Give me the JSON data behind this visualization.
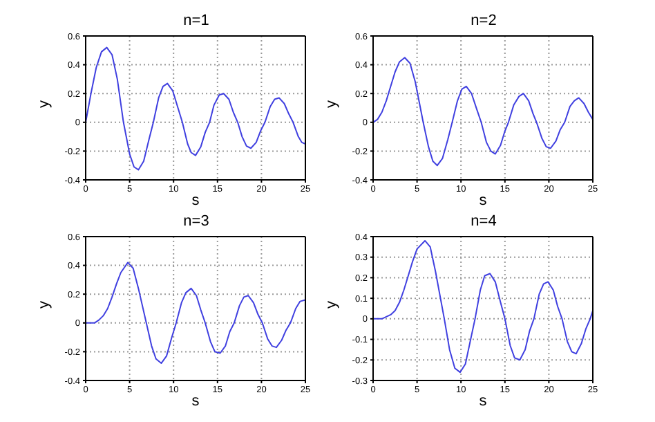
{
  "chart_data": [
    {
      "type": "line",
      "title": "n=1",
      "xlabel": "s",
      "ylabel": "y",
      "xlim": [
        0,
        25
      ],
      "xticks": [
        0,
        5,
        10,
        15,
        20,
        25
      ],
      "ylim": [
        -0.4,
        0.6
      ],
      "yticks": [
        -0.4,
        -0.2,
        0,
        0.2,
        0.4,
        0.6
      ],
      "grid": true,
      "x": [
        0,
        0.6,
        1.2,
        1.8,
        2.4,
        3.0,
        3.6,
        4.3,
        5.0,
        5.5,
        6.0,
        6.6,
        7.2,
        7.7,
        8.3,
        8.8,
        9.3,
        9.9,
        10.5,
        11.0,
        11.6,
        12.0,
        12.5,
        13.1,
        13.6,
        14.1,
        14.6,
        15.2,
        15.7,
        16.3,
        16.8,
        17.3,
        17.8,
        18.3,
        18.8,
        19.4,
        19.9,
        20.4,
        21.0,
        21.5,
        22.0,
        22.6,
        23.1,
        23.6,
        24.2,
        24.6,
        25
      ],
      "series": [
        {
          "color": "#4040e0",
          "values": [
            0,
            0.2,
            0.38,
            0.49,
            0.52,
            0.47,
            0.3,
            0,
            -0.22,
            -0.31,
            -0.33,
            -0.27,
            -0.12,
            0,
            0.17,
            0.25,
            0.27,
            0.22,
            0.1,
            0,
            -0.15,
            -0.21,
            -0.23,
            -0.17,
            -0.07,
            0,
            0.12,
            0.19,
            0.2,
            0.16,
            0.07,
            0,
            -0.1,
            -0.165,
            -0.18,
            -0.14,
            -0.06,
            0,
            0.11,
            0.16,
            0.17,
            0.13,
            0.06,
            0,
            -0.1,
            -0.14,
            -0.15
          ]
        }
      ]
    },
    {
      "type": "line",
      "title": "n=2",
      "xlabel": "s",
      "ylabel": "y",
      "xlim": [
        0,
        25
      ],
      "xticks": [
        0,
        5,
        10,
        15,
        20,
        25
      ],
      "ylim": [
        -0.4,
        0.6
      ],
      "yticks": [
        -0.4,
        -0.2,
        0,
        0.2,
        0.4,
        0.6
      ],
      "grid": true,
      "x": [
        0,
        0.5,
        1,
        1.5,
        2,
        2.5,
        3,
        3.6,
        4.2,
        4.8,
        5.7,
        6.3,
        6.8,
        7.3,
        7.9,
        8.5,
        9.0,
        9.6,
        10.1,
        10.6,
        11.2,
        11.8,
        12.3,
        12.9,
        13.4,
        13.9,
        14.5,
        15.0,
        15.4,
        16.0,
        16.6,
        17.1,
        17.7,
        18.2,
        18.6,
        19.2,
        19.7,
        20.2,
        20.8,
        21.3,
        21.8,
        22.4,
        22.9,
        23.4,
        24.0,
        24.5,
        25
      ],
      "series": [
        {
          "color": "#4040e0",
          "values": [
            0,
            0.02,
            0.07,
            0.15,
            0.25,
            0.35,
            0.42,
            0.45,
            0.41,
            0.28,
            0,
            -0.17,
            -0.27,
            -0.3,
            -0.25,
            -0.12,
            0,
            0.15,
            0.23,
            0.25,
            0.2,
            0.09,
            0,
            -0.14,
            -0.2,
            -0.22,
            -0.16,
            -0.06,
            0,
            0.12,
            0.18,
            0.2,
            0.15,
            0.06,
            0,
            -0.11,
            -0.17,
            -0.18,
            -0.13,
            -0.05,
            0,
            0.11,
            0.15,
            0.17,
            0.13,
            0.07,
            0.02
          ]
        }
      ]
    },
    {
      "type": "line",
      "title": "n=3",
      "xlabel": "s",
      "ylabel": "y",
      "xlim": [
        0,
        25
      ],
      "xticks": [
        0,
        5,
        10,
        15,
        20,
        25
      ],
      "ylim": [
        -0.4,
        0.6
      ],
      "yticks": [
        -0.4,
        -0.2,
        0,
        0.2,
        0.4,
        0.6
      ],
      "grid": true,
      "x": [
        0,
        1,
        1.5,
        2,
        2.5,
        3,
        3.5,
        4,
        4.8,
        5.4,
        6.0,
        6.9,
        7.5,
        8.0,
        8.6,
        9.2,
        9.8,
        10.3,
        10.9,
        11.4,
        12.0,
        12.6,
        13.1,
        13.6,
        14.2,
        14.7,
        15.3,
        15.9,
        16.4,
        16.9,
        17.5,
        18.0,
        18.5,
        19.1,
        19.6,
        20.1,
        20.7,
        21.2,
        21.7,
        22.3,
        22.8,
        23.3,
        23.9,
        24.4,
        25
      ],
      "series": [
        {
          "color": "#4040e0",
          "values": [
            0,
            0,
            0.02,
            0.05,
            0.1,
            0.18,
            0.27,
            0.35,
            0.42,
            0.38,
            0.24,
            0,
            -0.16,
            -0.25,
            -0.28,
            -0.23,
            -0.1,
            0,
            0.14,
            0.21,
            0.24,
            0.19,
            0.09,
            0,
            -0.13,
            -0.2,
            -0.21,
            -0.16,
            -0.06,
            0,
            0.12,
            0.18,
            0.19,
            0.14,
            0.06,
            0,
            -0.11,
            -0.16,
            -0.17,
            -0.12,
            -0.05,
            0,
            0.1,
            0.15,
            0.16
          ]
        }
      ]
    },
    {
      "type": "line",
      "title": "n=4",
      "xlabel": "s",
      "ylabel": "y",
      "xlim": [
        0,
        25
      ],
      "xticks": [
        0,
        5,
        10,
        15,
        20,
        25
      ],
      "ylim": [
        -0.3,
        0.4
      ],
      "yticks": [
        -0.3,
        -0.2,
        -0.1,
        0,
        0.1,
        0.2,
        0.3,
        0.4
      ],
      "grid": true,
      "x": [
        0,
        1,
        1.5,
        2,
        2.5,
        3,
        3.5,
        4,
        4.5,
        5,
        5.9,
        6.5,
        7.1,
        8.1,
        8.7,
        9.3,
        9.9,
        10.5,
        11.1,
        11.6,
        12.2,
        12.7,
        13.3,
        13.9,
        14.5,
        15.0,
        15.6,
        16.1,
        16.7,
        17.3,
        17.8,
        18.3,
        18.9,
        19.4,
        19.9,
        20.5,
        21.0,
        21.5,
        22.1,
        22.6,
        23.1,
        23.7,
        24.2,
        24.7,
        25
      ],
      "series": [
        {
          "color": "#4040e0",
          "values": [
            0,
            0,
            0.01,
            0.02,
            0.04,
            0.08,
            0.14,
            0.21,
            0.28,
            0.34,
            0.38,
            0.35,
            0.23,
            0,
            -0.15,
            -0.24,
            -0.26,
            -0.22,
            -0.1,
            0,
            0.14,
            0.21,
            0.22,
            0.18,
            0.08,
            0,
            -0.13,
            -0.19,
            -0.2,
            -0.15,
            -0.06,
            0,
            0.12,
            0.17,
            0.18,
            0.14,
            0.06,
            0,
            -0.11,
            -0.16,
            -0.17,
            -0.12,
            -0.05,
            0,
            0.04
          ]
        }
      ]
    }
  ]
}
